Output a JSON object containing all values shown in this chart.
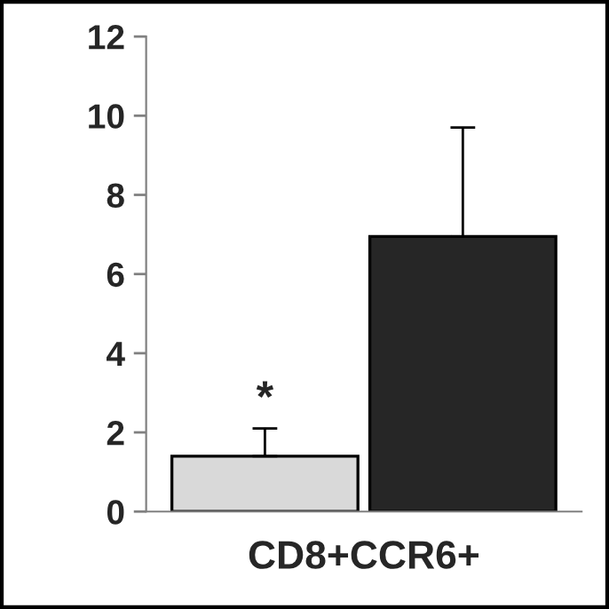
{
  "chart_data": {
    "type": "bar",
    "xlabel": "CD8+CCR6+",
    "categories": [
      null,
      null
    ],
    "values": [
      1.4,
      6.95
    ],
    "colors": [
      "#d9d9d9",
      "#262626"
    ],
    "errors": [
      [
        1.4,
        2.1
      ],
      [
        6.95,
        9.7
      ]
    ],
    "annotations": [
      "*"
    ],
    "ylim": [
      0,
      12
    ],
    "yticks": [
      0,
      2,
      4,
      6,
      8,
      10,
      12
    ],
    "grid": false,
    "legend": false
  }
}
